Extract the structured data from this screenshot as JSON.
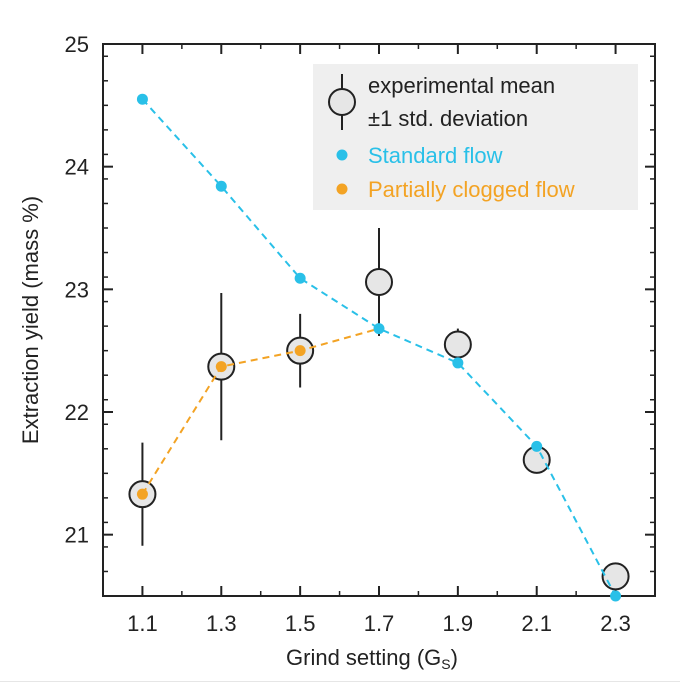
{
  "chart_data": {
    "type": "scatter",
    "title": "",
    "xlabel": "Grind setting (G",
    "xlabel_subscript": "S",
    "xlabel_suffix": ")",
    "ylabel": "Extraction yield (mass %)",
    "xlim": [
      1.0,
      2.4
    ],
    "ylim": [
      20.5,
      25.0
    ],
    "x_ticks": [
      "1.1",
      "1.3",
      "1.5",
      "1.7",
      "1.9",
      "2.1",
      "2.3"
    ],
    "y_ticks": [
      "21",
      "22",
      "23",
      "24",
      "25"
    ],
    "grid": false,
    "legend": {
      "position": "top-right",
      "entries": [
        {
          "line1": "experimental mean",
          "line2": "±1 std. deviation"
        },
        {
          "label": "Standard flow"
        },
        {
          "label": "Partially clogged flow"
        }
      ]
    },
    "series": [
      {
        "name": "experimental mean",
        "kind": "errorbar",
        "x": [
          1.1,
          1.3,
          1.5,
          1.7,
          1.9,
          2.1,
          2.3
        ],
        "y": [
          21.33,
          22.37,
          22.5,
          23.06,
          22.55,
          21.61,
          20.66
        ],
        "yerr": [
          0.42,
          0.6,
          0.3,
          0.44,
          0.13,
          0.05,
          0.05
        ]
      },
      {
        "name": "Standard flow",
        "kind": "line",
        "x": [
          1.1,
          1.3,
          1.5,
          1.7,
          1.9,
          2.1,
          2.3
        ],
        "y": [
          24.55,
          23.84,
          23.09,
          22.68,
          22.4,
          21.72,
          20.5
        ]
      },
      {
        "name": "Partially clogged flow",
        "kind": "line",
        "x": [
          1.1,
          1.3,
          1.5,
          1.7
        ],
        "y": [
          21.33,
          22.37,
          22.5,
          22.68
        ]
      }
    ]
  },
  "colors": {
    "standard": "#29c0e8",
    "clogged": "#f3a324",
    "mean_fill": "#e6e6e6",
    "mean_stroke": "#222222",
    "legend_bg": "#efefef",
    "axis": "#222222"
  }
}
